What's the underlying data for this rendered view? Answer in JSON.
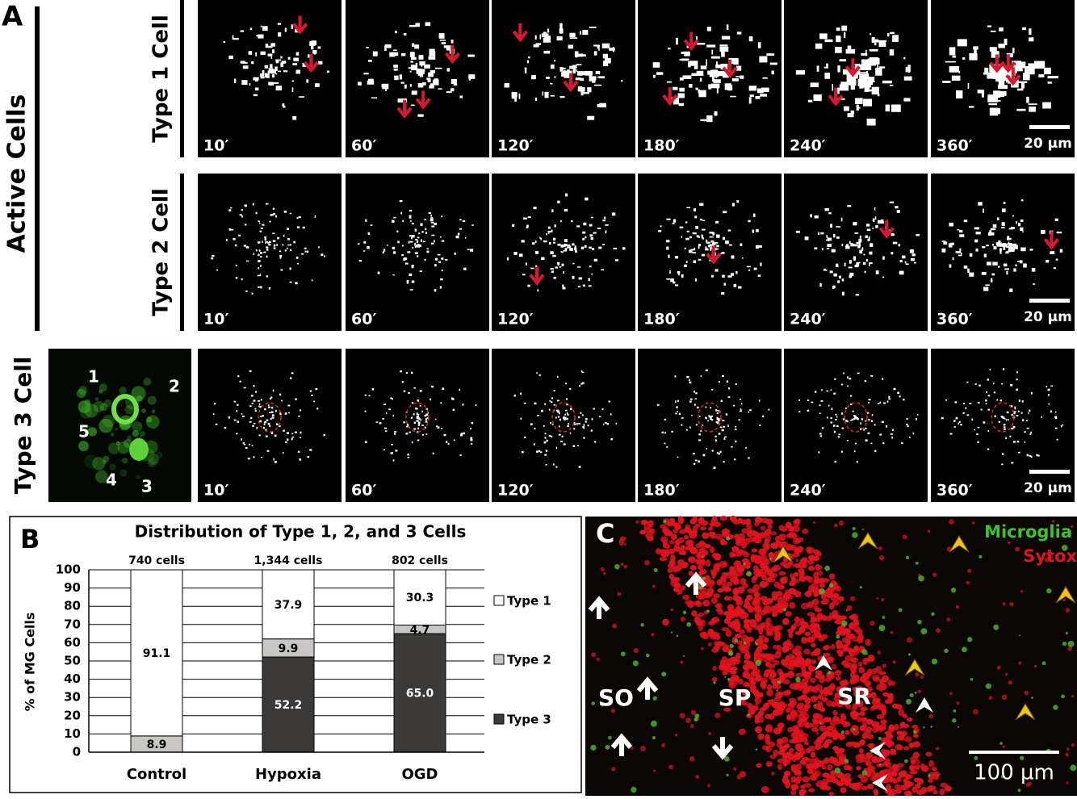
{
  "panel_a": {
    "label": "A",
    "group_label": "Active Cells",
    "rows": [
      "Type 1 Cell",
      "Type 2 Cell",
      "Type 3 Cell"
    ],
    "times": [
      "10′",
      "60′",
      "120′",
      "180′",
      "240′",
      "360′"
    ],
    "scale_bar": "20 µm",
    "cell_numbers": [
      "1",
      "2",
      "3",
      "4",
      "5"
    ]
  },
  "chart_data": {
    "type": "stacked_bar",
    "label": "B",
    "title": "Distribution of Type 1, 2, and 3 Cells",
    "ylabel": "% of MG Cells",
    "categories": [
      "Control",
      "Hypoxia",
      "OGD"
    ],
    "bar_annotations": [
      "740 cells",
      "1,344 cells",
      "802 cells"
    ],
    "series": [
      {
        "name": "Type 3",
        "color": "#3b3a38",
        "values": [
          0,
          52.2,
          65
        ],
        "value_labels": [
          null,
          "52.2",
          "65.0"
        ]
      },
      {
        "name": "Type 2",
        "color": "#c9c7c3",
        "values": [
          8.9,
          9.9,
          4.7
        ]
      },
      {
        "name": "Type 1",
        "color": "#ffffff",
        "values": [
          91.1,
          37.9,
          30.3
        ]
      }
    ],
    "ylim": [
      0,
      100
    ],
    "yticks": [
      0,
      10,
      20,
      30,
      40,
      50,
      60,
      70,
      80,
      90,
      100
    ],
    "grid": true
  },
  "panel_c": {
    "label": "C",
    "legend": [
      "Microglia",
      "Sytox"
    ],
    "regions": [
      "SO",
      "SP",
      "SR"
    ],
    "scale_bar": "100 µm"
  }
}
